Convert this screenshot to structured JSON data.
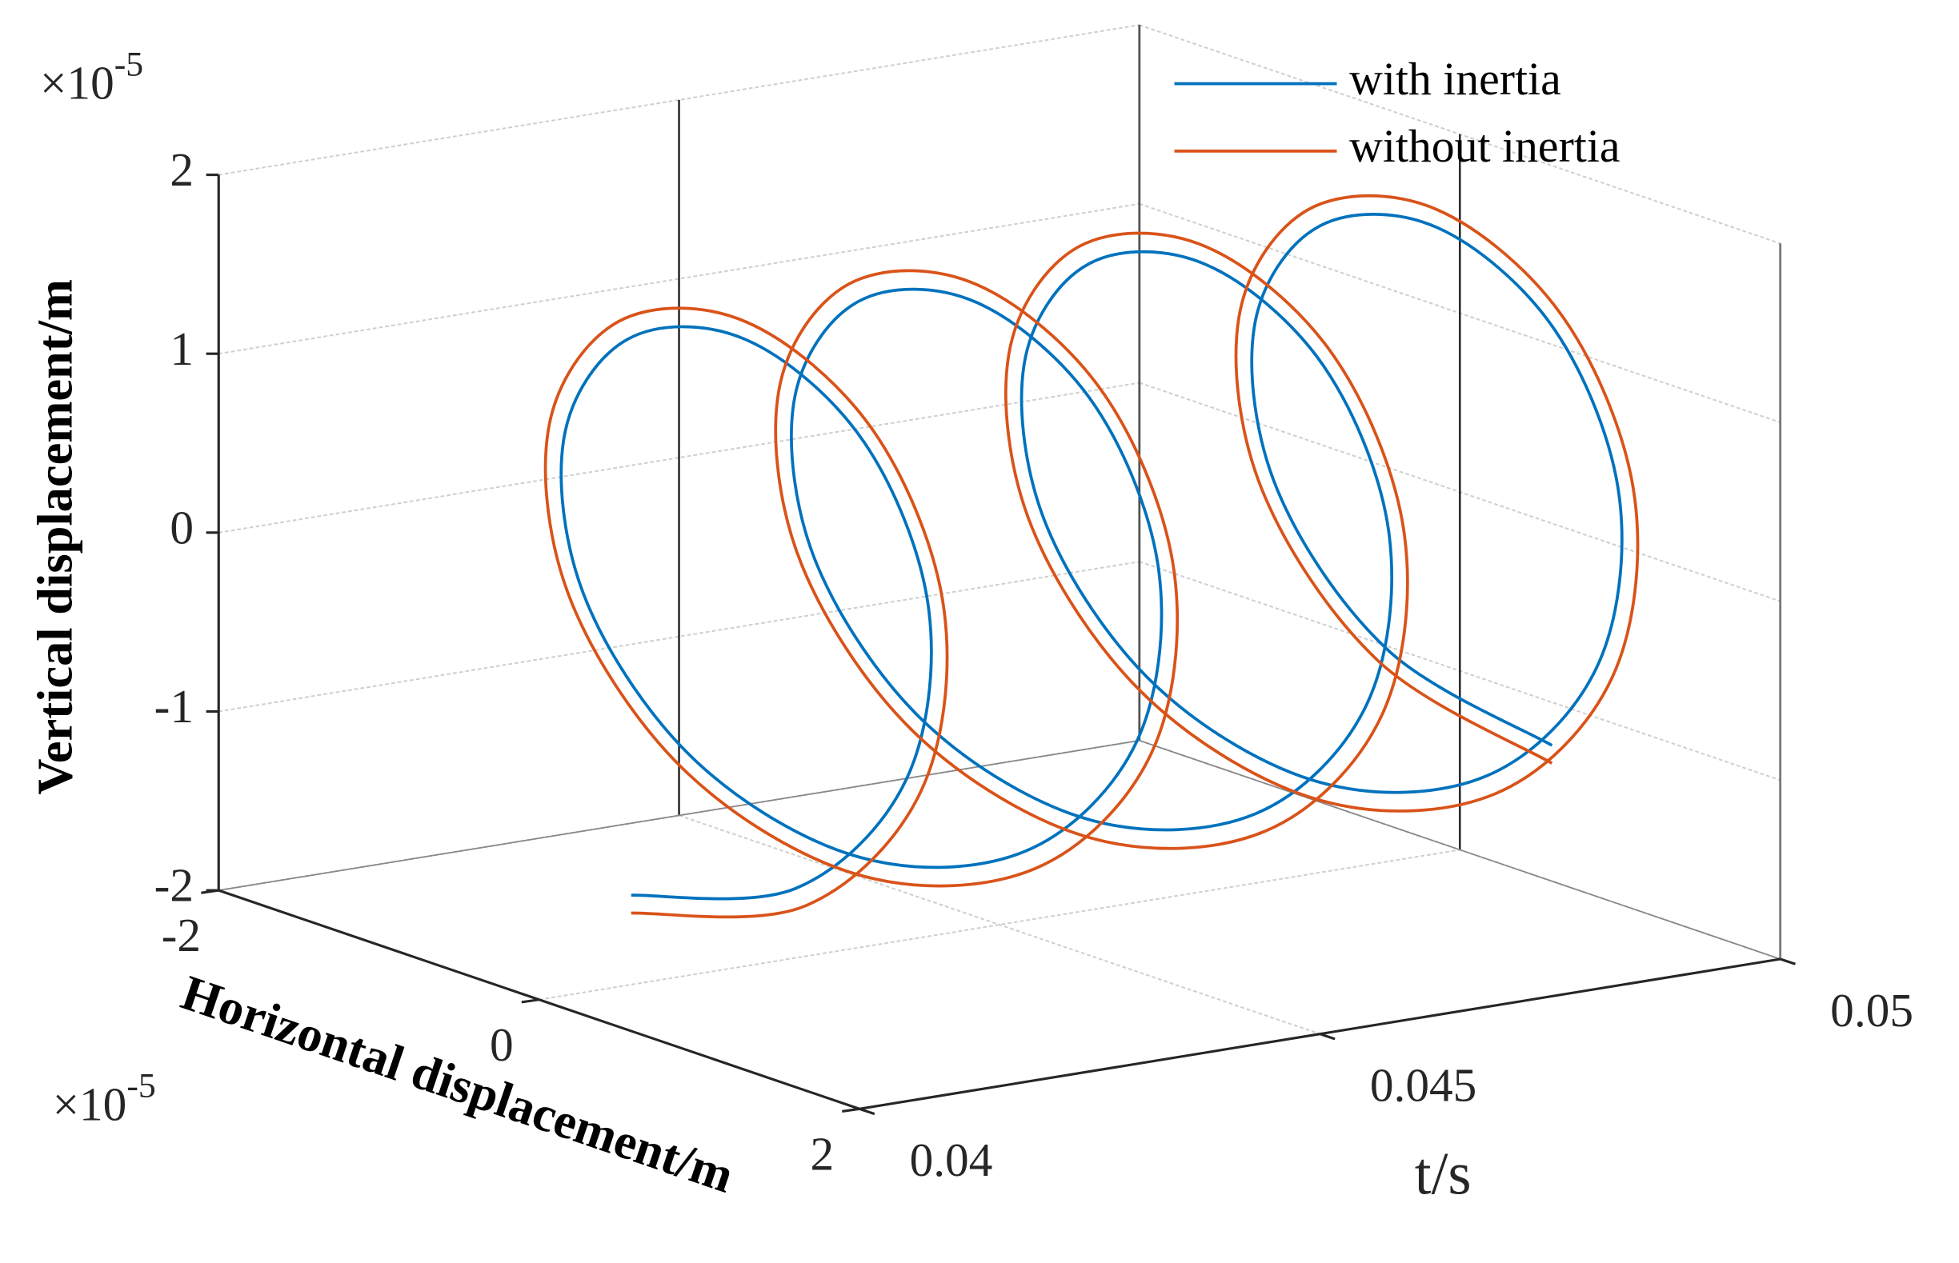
{
  "chart_data": {
    "type": "line3d",
    "xlabel": "t/s",
    "ylabel": "Horizontal displacement/m",
    "zlabel": "Vertical displacement/m",
    "y_multiplier": {
      "base": "×10",
      "exponent": -5
    },
    "z_multiplier": {
      "base": "×10",
      "exponent": -5
    },
    "xlim": [
      0.04,
      0.05
    ],
    "xticks": [
      0.04,
      0.045,
      0.05
    ],
    "ylim": [
      -2,
      2
    ],
    "yticks": [
      -2,
      0,
      2
    ],
    "zlim": [
      -2,
      2
    ],
    "zticks": [
      -2,
      -1,
      0,
      1,
      2
    ],
    "grid": true,
    "legend": "upper right",
    "x": [
      0.041,
      0.04125,
      0.0415,
      0.04175,
      0.042,
      0.04225,
      0.0425,
      0.04275,
      0.043,
      0.04325,
      0.0435,
      0.04375,
      0.044,
      0.04425,
      0.0445,
      0.04475,
      0.045,
      0.04525,
      0.0455,
      0.04575,
      0.046,
      0.04625,
      0.0465,
      0.04675,
      0.047,
      0.04725,
      0.0475,
      0.04775,
      0.048,
      0.04825,
      0.0485,
      0.04875,
      0.049,
      0.04925,
      0.0495,
      0.04975,
      0.05,
      0.05025,
      0.0505,
      0.05075,
      0.051
    ],
    "series": [
      {
        "name": "with inertia",
        "color": "#0072bd",
        "y": [
          0,
          0.882,
          1.427,
          1.427,
          0.882,
          0,
          -0.882,
          -1.427,
          -1.427,
          -0.882,
          0,
          0.882,
          1.427,
          1.427,
          0.882,
          0,
          -0.882,
          -1.427,
          -1.427,
          -0.882,
          0,
          0.882,
          1.427,
          1.427,
          0.882,
          0,
          -0.882,
          -1.427,
          -1.427,
          -0.882,
          0,
          0.882,
          1.427,
          1.427,
          0.882,
          0,
          -0.882,
          -1.427,
          -1.427,
          -0.882,
          0
        ],
        "values": [
          -1.5,
          -1.214,
          -0.464,
          0.464,
          1.214,
          1.5,
          1.214,
          0.464,
          -0.464,
          -1.214,
          -1.5,
          -1.214,
          -0.464,
          0.464,
          1.214,
          1.5,
          1.214,
          0.464,
          -0.464,
          -1.214,
          -1.5,
          -1.214,
          -0.464,
          0.464,
          1.214,
          1.5,
          1.214,
          0.464,
          -0.464,
          -1.214,
          -1.5,
          -1.214,
          -0.464,
          0.464,
          1.214,
          1.5,
          1.214,
          0.464,
          -0.464,
          -1.214,
          -1.5
        ]
      },
      {
        "name": "without inertia",
        "color": "#d95319",
        "y": [
          0,
          0.941,
          1.522,
          1.522,
          0.941,
          0,
          -0.941,
          -1.522,
          -1.522,
          -0.941,
          0,
          0.941,
          1.522,
          1.522,
          0.941,
          0,
          -0.941,
          -1.522,
          -1.522,
          -0.941,
          0,
          0.941,
          1.522,
          1.522,
          0.941,
          0,
          -0.941,
          -1.522,
          -1.522,
          -0.941,
          0,
          0.941,
          1.522,
          1.522,
          0.941,
          0,
          -0.941,
          -1.522,
          -1.522,
          -0.941,
          0
        ],
        "values": [
          -1.6,
          -1.294,
          -0.494,
          0.494,
          1.294,
          1.6,
          1.294,
          0.494,
          -0.494,
          -1.294,
          -1.6,
          -1.294,
          -0.494,
          0.494,
          1.294,
          1.6,
          1.294,
          0.494,
          -0.494,
          -1.294,
          -1.6,
          -1.294,
          -0.494,
          0.494,
          1.294,
          1.6,
          1.294,
          0.494,
          -0.494,
          -1.294,
          -1.6,
          -1.294,
          -0.494,
          0.494,
          1.294,
          1.6,
          1.294,
          0.494,
          -0.494,
          -1.294,
          -1.6
        ]
      }
    ]
  }
}
